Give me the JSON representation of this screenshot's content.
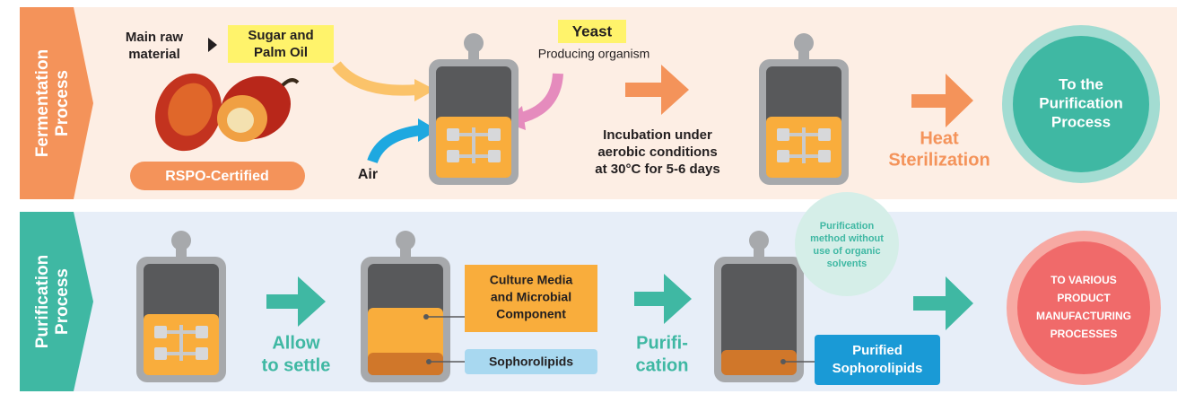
{
  "fermentation": {
    "label": [
      "Fermentation",
      "Process"
    ],
    "raw_material_label": [
      "Main raw",
      "material"
    ],
    "raw_material": [
      "Sugar and",
      "Palm Oil"
    ],
    "certification": "RSPO-Certified",
    "yeast": "Yeast",
    "yeast_note": "Producing organism",
    "air": "Air",
    "incubation": [
      "Incubation under",
      "aerobic conditions",
      "at 30°C for 5-6 days"
    ],
    "sterilization": [
      "Heat",
      "Sterilization"
    ],
    "next": [
      "To the",
      "Purification",
      "Process"
    ]
  },
  "purification": {
    "label": [
      "Purification",
      "Process"
    ],
    "settle": [
      "Allow",
      "to settle"
    ],
    "culture": [
      "Culture Media",
      "and Microbial",
      "Component"
    ],
    "sophorolipids": "Sophorolipids",
    "purify": [
      "Purifi-",
      "cation"
    ],
    "method_note": [
      "Purification",
      "method without",
      "use of organic",
      "solvents"
    ],
    "purified": [
      "Purified",
      "Sophorolipids"
    ],
    "next": [
      "TO VARIOUS",
      "PRODUCT",
      "MANUFACTURING",
      "PROCESSES"
    ]
  }
}
